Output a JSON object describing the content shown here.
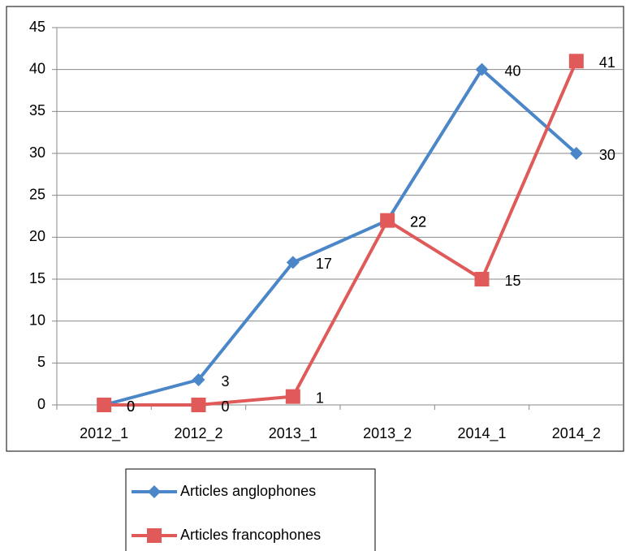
{
  "chart_data": {
    "type": "line",
    "categories": [
      "2012_1",
      "2012_2",
      "2013_1",
      "2013_2",
      "2014_1",
      "2014_2"
    ],
    "series": [
      {
        "name": "Articles anglophones",
        "color": "#4a86c8",
        "marker": "diamond",
        "values": [
          0,
          3,
          17,
          22,
          40,
          30
        ]
      },
      {
        "name": "Articles francophones",
        "color": "#e05a5a",
        "marker": "square",
        "values": [
          0,
          0,
          1,
          22,
          15,
          41
        ]
      }
    ],
    "ylim": [
      0,
      45
    ],
    "yticks": [
      0,
      5,
      10,
      15,
      20,
      25,
      30,
      35,
      40,
      45
    ],
    "grid": true,
    "legend": "bottom"
  }
}
